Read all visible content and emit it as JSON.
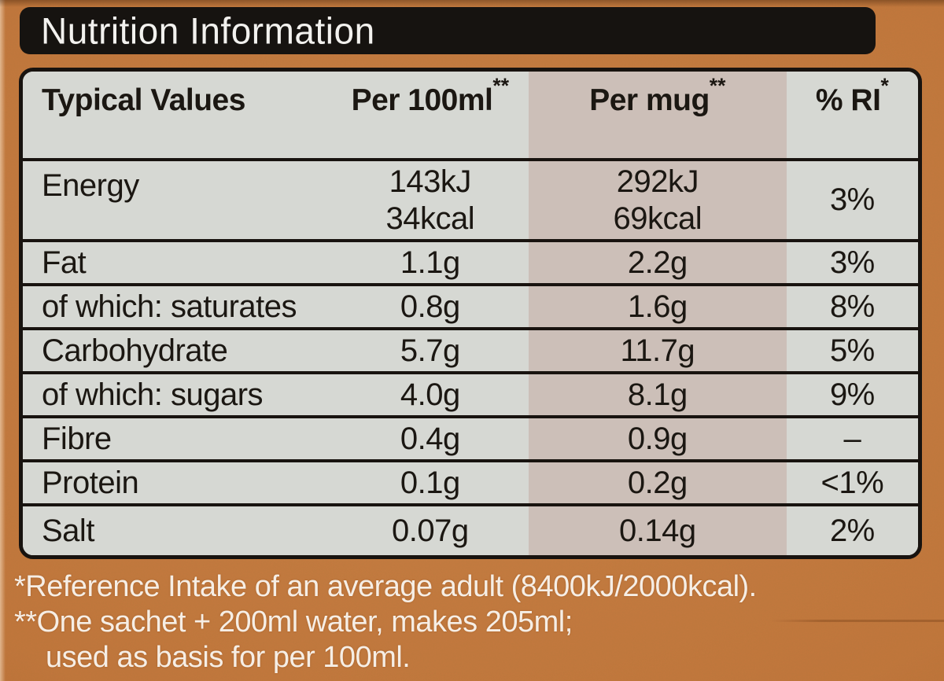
{
  "title": "Nutrition Information",
  "table": {
    "columns": [
      "Typical Values",
      "Per 100ml**",
      "Per mug**",
      "% RI*"
    ],
    "rows": [
      {
        "label": "Energy",
        "per100ml": "143kJ\n34kcal",
        "per_mug": "292kJ\n69kcal",
        "ri": "3%"
      },
      {
        "label": "Fat",
        "per100ml": "1.1g",
        "per_mug": "2.2g",
        "ri": "3%"
      },
      {
        "label": "of which: saturates",
        "per100ml": "0.8g",
        "per_mug": "1.6g",
        "ri": "8%"
      },
      {
        "label": "Carbohydrate",
        "per100ml": "5.7g",
        "per_mug": "11.7g",
        "ri": "5%"
      },
      {
        "label": "of which: sugars",
        "per100ml": "4.0g",
        "per_mug": "8.1g",
        "ri": "9%"
      },
      {
        "label": "Fibre",
        "per100ml": "0.4g",
        "per_mug": "0.9g",
        "ri": "–"
      },
      {
        "label": "Protein",
        "per100ml": "0.1g",
        "per_mug": "0.2g",
        "ri": "<1%"
      },
      {
        "label": "Salt",
        "per100ml": "0.07g",
        "per_mug": "0.14g",
        "ri": "2%"
      }
    ]
  },
  "footnotes": [
    "*Reference Intake of an average adult (8400kJ/2000kcal).",
    "**One sachet + 200ml water, makes 205ml;",
    "used as basis for per 100ml."
  ],
  "colors": {
    "background_orange": "#c2763c",
    "title_black": "#161310",
    "row_gray": "#d6d8d3",
    "mug_highlight_pink": "#ccbfb8",
    "line_black": "#18130f",
    "text_black": "#1b1712",
    "footnote_white": "#f6eee5"
  }
}
